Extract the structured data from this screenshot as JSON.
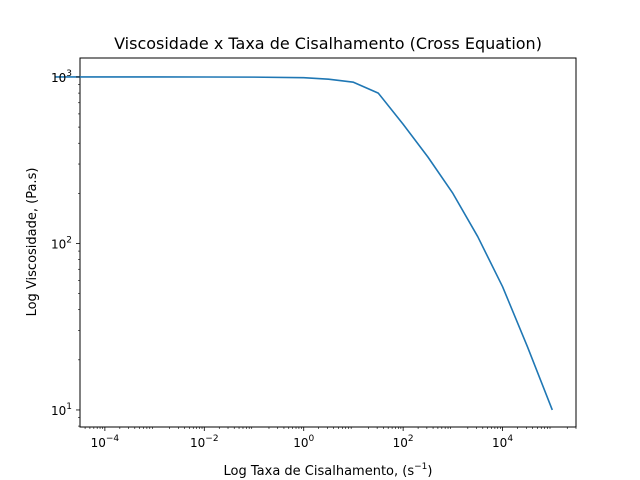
{
  "chart_data": {
    "type": "line",
    "title": "Viscosidade x Taxa de Cisalhamento (Cross Equation)",
    "xlabel": "Log Taxa de Cisalhamento, (s",
    "xlabel_exp": "−1",
    "xlabel_suffix": ")",
    "ylabel": "Log Viscosidade, (Pa.s)",
    "xscale": "log",
    "yscale": "log",
    "xlim": [
      3.16e-05,
      300000
    ],
    "ylim": [
      7.9,
      1300
    ],
    "grid": false,
    "series_color": "#1f77b4",
    "x_ticks": [
      {
        "value": 0.0001,
        "base": "10",
        "exp": "−4"
      },
      {
        "value": 0.01,
        "base": "10",
        "exp": "−2"
      },
      {
        "value": 1,
        "base": "10",
        "exp": "0"
      },
      {
        "value": 100,
        "base": "10",
        "exp": "2"
      },
      {
        "value": 10000,
        "base": "10",
        "exp": "4"
      }
    ],
    "y_ticks": [
      {
        "value": 10,
        "base": "10",
        "exp": "1"
      },
      {
        "value": 100,
        "base": "10",
        "exp": "2"
      },
      {
        "value": 1000,
        "base": "10",
        "exp": "3"
      }
    ],
    "series": [
      {
        "x": [
          1e-05,
          0.0001,
          0.001,
          0.01,
          0.1,
          1,
          3.16,
          10,
          31.6,
          100,
          316,
          1000,
          3162,
          10000,
          31623,
          100000
        ],
        "y": [
          1000,
          1000,
          1000,
          999.5,
          998,
          990,
          970,
          930,
          800,
          520,
          330,
          200,
          110,
          55,
          24,
          10
        ]
      }
    ]
  }
}
